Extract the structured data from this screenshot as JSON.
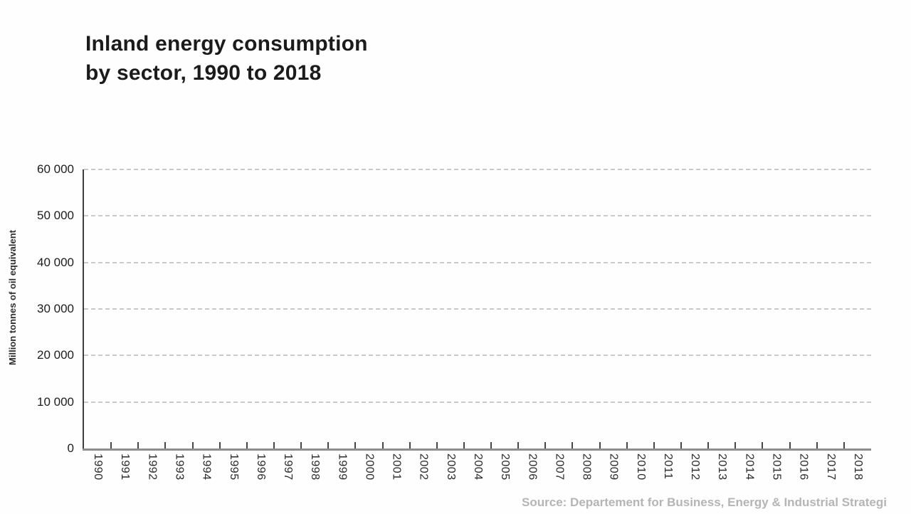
{
  "header": {
    "title_line1": "Inland energy consumption",
    "title_line2": "by sector, 1990 to 2018"
  },
  "chart_data": {
    "type": "bar",
    "title": "Inland energy consumption by sector, 1990 to 2018",
    "categories": [
      "1990",
      "1991",
      "1992",
      "1993",
      "1994",
      "1995",
      "1996",
      "1997",
      "1998",
      "1999",
      "2000",
      "2001",
      "2002",
      "2003",
      "2004",
      "2005",
      "2006",
      "2007",
      "2008",
      "2009",
      "2010",
      "2011",
      "2012",
      "2013",
      "2014",
      "2015",
      "2016",
      "2017",
      "2018"
    ],
    "series": [],
    "series_note": "no bars/data series are rendered in this animation frame — plot area is empty",
    "xlabel": "",
    "ylabel": "Million tonnes of oil equivalent",
    "ylim": [
      0,
      60000
    ],
    "y_ticks": [
      {
        "value": 0,
        "label": "0"
      },
      {
        "value": 10000,
        "label": "10 000"
      },
      {
        "value": 20000,
        "label": "20 000"
      },
      {
        "value": 30000,
        "label": "30 000"
      },
      {
        "value": 40000,
        "label": "40 000"
      },
      {
        "value": 50000,
        "label": "50 000"
      },
      {
        "value": 60000,
        "label": "60 000"
      }
    ],
    "grid": "horizontal dashed gridlines only",
    "legend": "none",
    "source": "Source: Departement for Business, Energy & Industrial Strategi"
  },
  "colors": {
    "background": "#fefefe",
    "title_text": "#1b1b1b",
    "y_axis_line": "#3d3d3d",
    "x_axis_line": "#8d8d8d",
    "gridline": "#c9c9c9",
    "tick_label": "#1d1d1d",
    "source_text": "#b5b5b5"
  }
}
